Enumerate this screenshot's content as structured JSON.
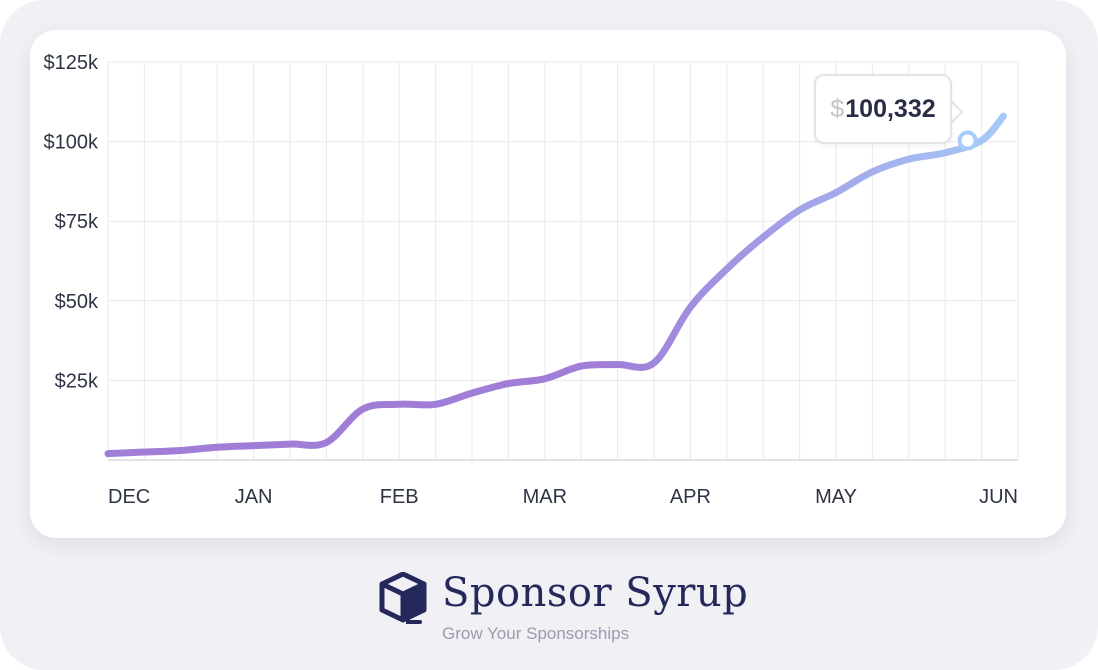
{
  "chart_data": {
    "type": "line",
    "x_ticks": [
      "DEC",
      "JAN",
      "FEB",
      "MAR",
      "APR",
      "MAY",
      "JUN"
    ],
    "y_ticks": [
      "$125k",
      "$100k",
      "$75k",
      "$50k",
      "$25k"
    ],
    "ylim": [
      0,
      125000
    ],
    "x": [
      0,
      0.25,
      0.5,
      0.75,
      1,
      1.25,
      1.5,
      1.75,
      2,
      2.25,
      2.5,
      2.75,
      3,
      3.25,
      3.5,
      3.75,
      4,
      4.25,
      4.5,
      4.75,
      5,
      5.25,
      5.5,
      5.75,
      6,
      6.15
    ],
    "values": [
      2000,
      2500,
      3000,
      4000,
      4500,
      5000,
      5500,
      16000,
      17500,
      17500,
      21000,
      24000,
      25500,
      29500,
      30000,
      30500,
      48000,
      60000,
      70000,
      78500,
      84000,
      90500,
      94500,
      96500,
      100332,
      108000
    ],
    "highlight": {
      "x": 6,
      "value": 100332
    },
    "grid": true,
    "colors": {
      "line_start": "#a07ed8",
      "line_end": "#a6ccf8",
      "grid": "#e9e9ee",
      "axis_text": "#2f3445"
    }
  },
  "tooltip": {
    "currency": "$",
    "amount": "100,332"
  },
  "brand": {
    "name": "Sponsor Syrup",
    "tagline": "Grow Your Sponsorships"
  }
}
